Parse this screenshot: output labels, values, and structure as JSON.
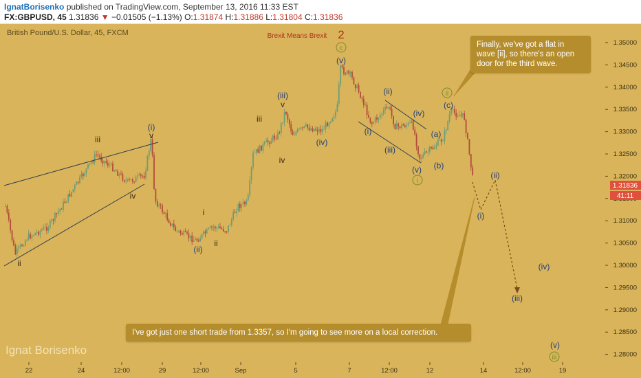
{
  "header": {
    "author": "IgnatBorisenko",
    "published_text": "published on TradingView.com, September 13, 2016 11:33 EST",
    "symbol": "FX:GBPUSD, 45",
    "last": "1.31836",
    "change": "−0.01505 (−1.13%)",
    "open_label": "O:",
    "open": "1.31874",
    "high_label": "H:",
    "high": "1.31886",
    "low_label": "L:",
    "low": "1.31804",
    "close_label": "C:",
    "close": "1.31836"
  },
  "chart": {
    "pair_label": "British Pound/U.S. Dollar, 45, FXCM",
    "watermark": "Ignat Borisenko",
    "event_label": "Brexit Means Brexit",
    "event_number": "2",
    "callout_top": "Finally, we've got a flat in wave [ii], so there's an open door for the third wave.",
    "callout_bottom": "I've got just one short trade from 1.3357, so I'm going to see more on a local correction.",
    "price_tag": "1.31836",
    "countdown_tag": "41:11",
    "y_ticks": [
      "1.35000",
      "1.34500",
      "1.34000",
      "1.33500",
      "1.33000",
      "1.32500",
      "1.32000",
      "1.31500",
      "1.31000",
      "1.30500",
      "1.30000",
      "1.29500",
      "1.29000",
      "1.28500",
      "1.28000"
    ],
    "x_ticks": [
      "22",
      "24",
      "12:00",
      "29",
      "12:00",
      "Sep",
      "5",
      "7",
      "12:00",
      "12",
      "14",
      "12:00",
      "19"
    ],
    "wave_labels": [
      "ii",
      "iii",
      "iv",
      "(i)",
      "v",
      "(ii)",
      "i",
      "ii",
      "iii",
      "iv",
      "(iii)",
      "v",
      "(iv)",
      "(v)",
      "c",
      "(ii)",
      "(i)",
      "(iii)",
      "(iv)",
      "(v)",
      "i",
      "(a)",
      "(b)",
      "ii",
      "(c)",
      "(ii)",
      "(i)",
      "(iii)",
      "(iv)",
      "(v)",
      "iii"
    ]
  },
  "colors": {
    "background": "#d9b45a",
    "candle_up": "#6d9d78",
    "candle_down": "#b24b3b",
    "wave_blue": "#223f7a",
    "wave_dark": "#3a2a14",
    "circle_label": "#7a8a2a",
    "price_tag": "#e0503c",
    "callout": "#b58d2c",
    "event": "#b0321e"
  }
}
